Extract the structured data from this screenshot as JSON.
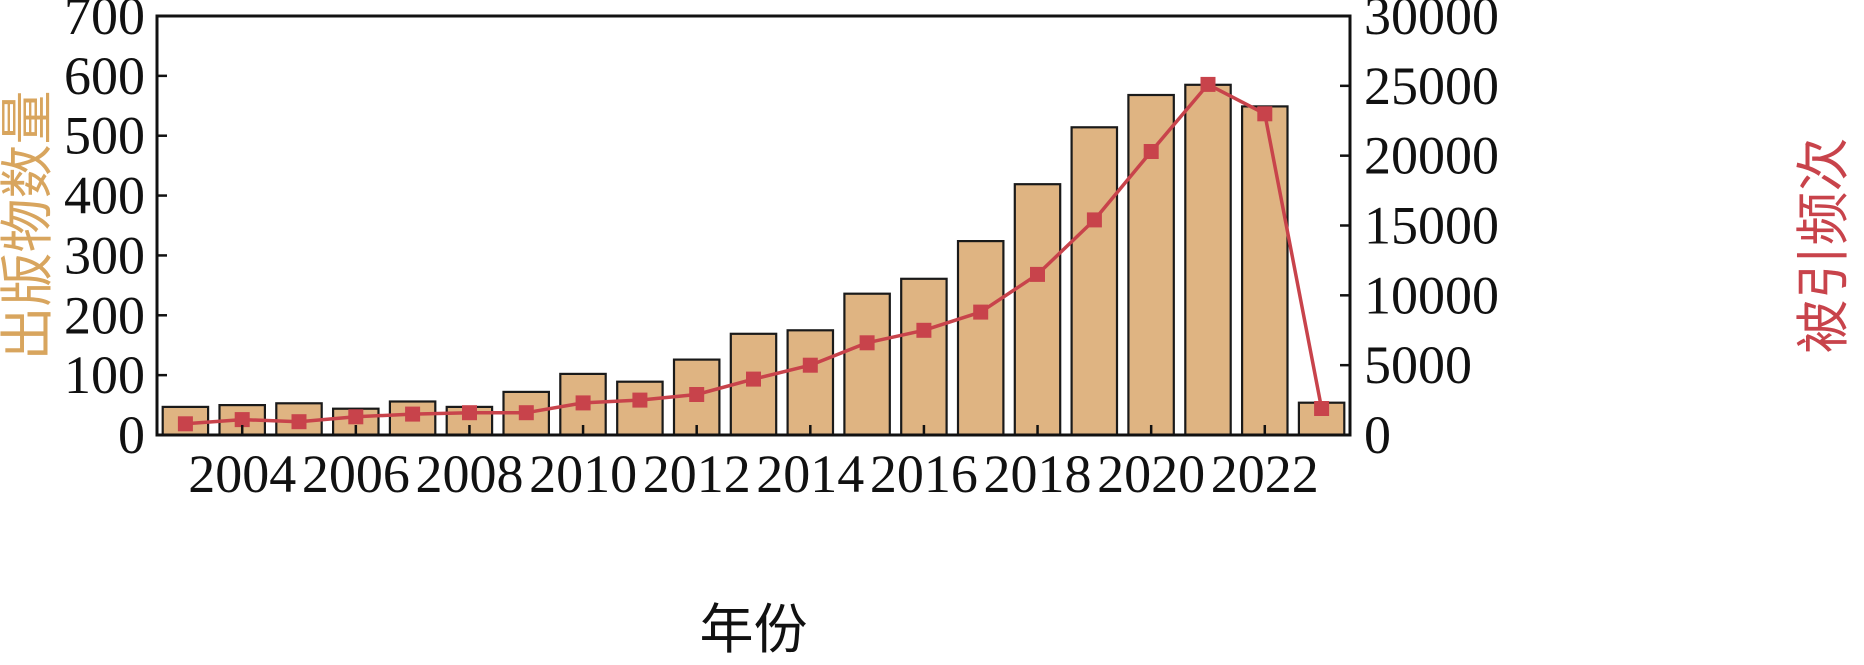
{
  "chart_data": {
    "type": "bar+line",
    "xlabel": "年份",
    "years": [
      2003,
      2004,
      2005,
      2006,
      2007,
      2008,
      2009,
      2010,
      2011,
      2012,
      2013,
      2014,
      2015,
      2016,
      2017,
      2018,
      2019,
      2020,
      2021,
      2022,
      2023
    ],
    "x_tick_labels": [
      "2004",
      "2006",
      "2008",
      "2010",
      "2012",
      "2014",
      "2016",
      "2018",
      "2020",
      "2022"
    ],
    "y_left": {
      "label": "出版物数量",
      "ylim": [
        0,
        700
      ],
      "ticks": [
        "0",
        "100",
        "200",
        "300",
        "400",
        "500",
        "600",
        "700"
      ],
      "color": "#d8a55e"
    },
    "y_right": {
      "label": "被引频次",
      "ylim": [
        0,
        30000
      ],
      "ticks": [
        "0",
        "5000",
        "10000",
        "15000",
        "20000",
        "25000",
        "30000"
      ],
      "color": "#c8434b"
    },
    "series": [
      {
        "kind": "bar",
        "axis": "left",
        "fill": "#dfb482",
        "stroke": "#1a1a1a",
        "values": [
          47,
          50,
          53,
          44,
          56,
          47,
          72,
          102,
          89,
          126,
          169,
          175,
          236,
          261,
          324,
          419,
          514,
          568,
          585,
          549,
          54
        ]
      },
      {
        "kind": "line",
        "axis": "right",
        "color": "#c8434b",
        "marker": "square",
        "values": [
          800,
          1100,
          950,
          1300,
          1500,
          1600,
          1600,
          2300,
          2500,
          2900,
          4000,
          5000,
          6600,
          7500,
          8800,
          11500,
          15400,
          20300,
          25100,
          23000,
          1900
        ]
      }
    ],
    "grid": false,
    "legend": "none"
  }
}
